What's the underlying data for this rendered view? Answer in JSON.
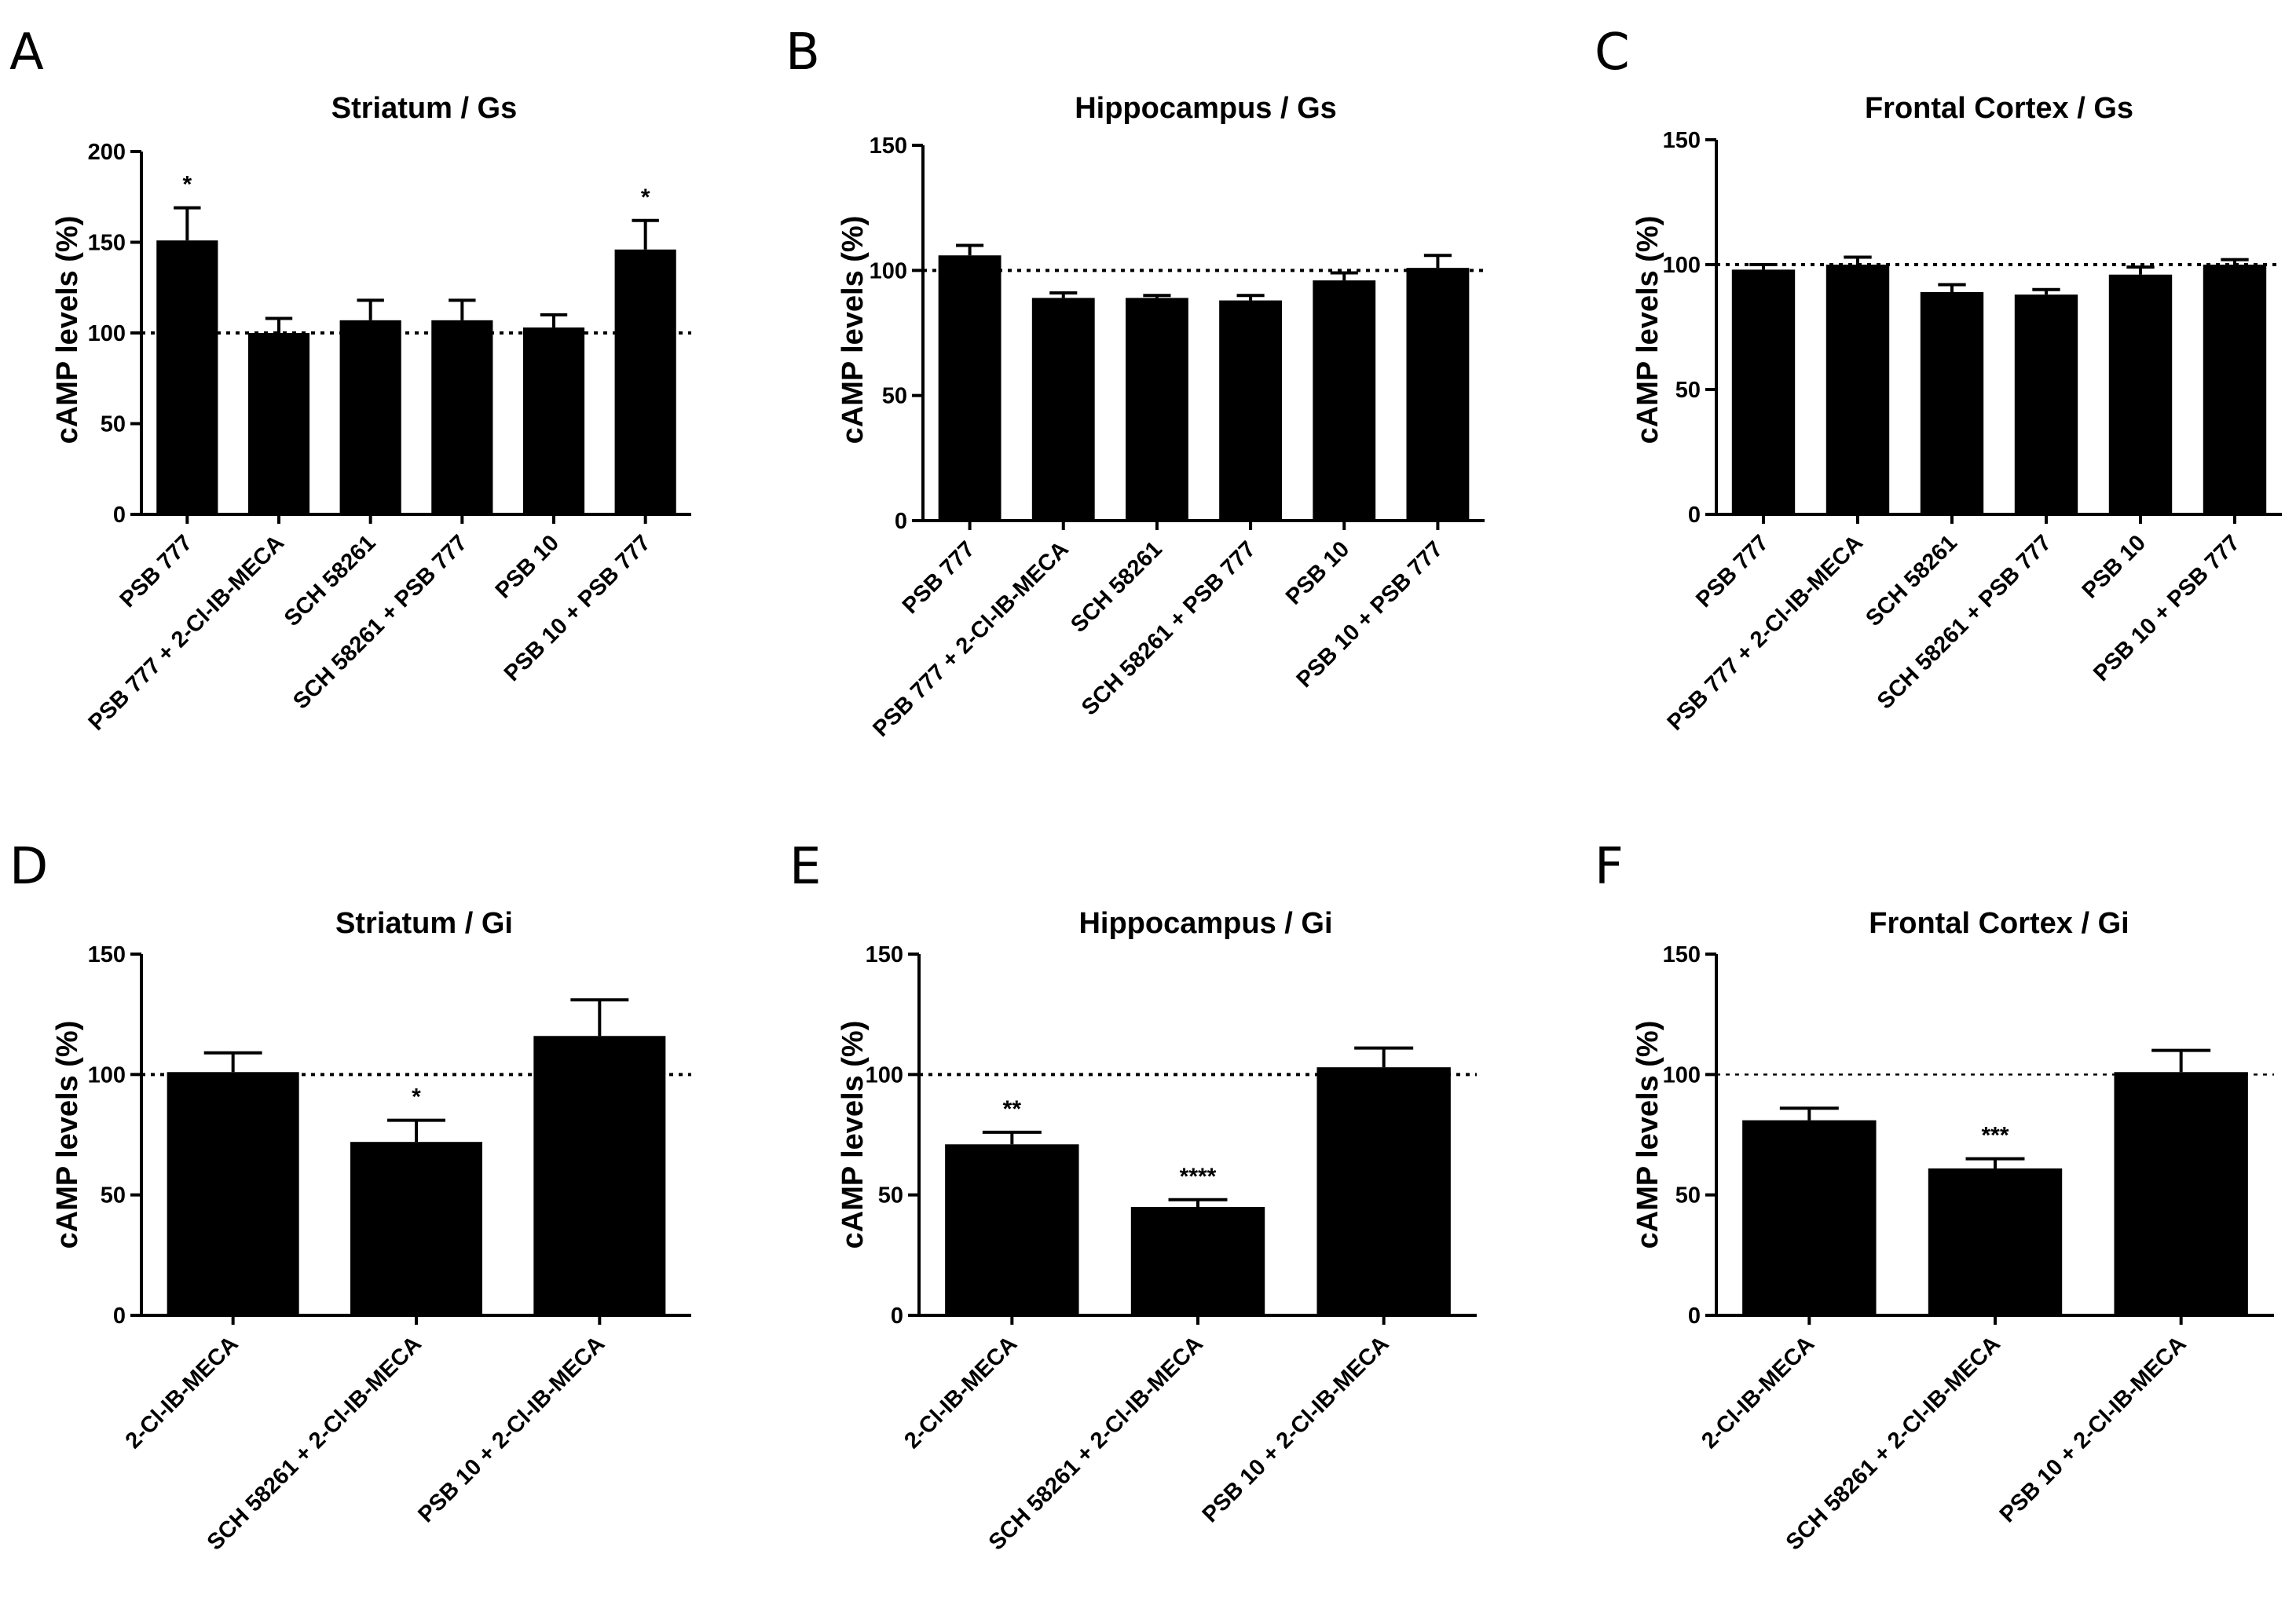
{
  "figure": {
    "accent_color": "#000000"
  },
  "chart_data": [
    {
      "panel": "A",
      "type": "bar",
      "title": "Striatum / Gs",
      "ylabel": "cAMP levels (%)",
      "xlabel": "",
      "ylim": [
        0,
        200
      ],
      "yticks": [
        0,
        50,
        100,
        150,
        200
      ],
      "reference_line": 100,
      "categories": [
        "PSB 777",
        "PSB 777 + 2-Cl-IB-MECA",
        "SCH 58261",
        "SCH 58261 + PSB 777",
        "PSB 10",
        "PSB 10 + PSB 777"
      ],
      "values": [
        151,
        100,
        107,
        107,
        103,
        146
      ],
      "errors": [
        18,
        8,
        11,
        11,
        7,
        16
      ],
      "significance": [
        "*",
        "",
        "",
        "",
        "",
        "*"
      ]
    },
    {
      "panel": "B",
      "type": "bar",
      "title": "Hippocampus / Gs",
      "ylabel": "cAMP levels (%)",
      "xlabel": "",
      "ylim": [
        0,
        150
      ],
      "yticks": [
        0,
        50,
        100,
        150
      ],
      "reference_line": 100,
      "categories": [
        "PSB 777",
        "PSB 777 + 2-Cl-IB-MECA",
        "SCH 58261",
        "SCH 58261 + PSB 777",
        "PSB 10",
        "PSB 10 + PSB 777"
      ],
      "values": [
        106,
        89,
        89,
        88,
        96,
        101
      ],
      "errors": [
        4,
        2,
        1,
        2,
        3,
        5
      ],
      "significance": [
        "",
        "",
        "",
        "",
        "",
        ""
      ]
    },
    {
      "panel": "C",
      "type": "bar",
      "title": "Frontal Cortex / Gs",
      "ylabel": "cAMP levels (%)",
      "xlabel": "",
      "ylim": [
        0,
        150
      ],
      "yticks": [
        0,
        50,
        100,
        150
      ],
      "reference_line": 100,
      "categories": [
        "PSB 777",
        "PSB 777 + 2-Cl-IB-MECA",
        "SCH 58261",
        "SCH 58261 + PSB 777",
        "PSB 10",
        "PSB 10 + PSB 777"
      ],
      "values": [
        98,
        100,
        89,
        88,
        96,
        100
      ],
      "errors": [
        2,
        3,
        3,
        2,
        3,
        2
      ],
      "significance": [
        "",
        "",
        "",
        "",
        "",
        ""
      ]
    },
    {
      "panel": "D",
      "type": "bar",
      "title": "Striatum / Gi",
      "ylabel": "cAMP levels (%)",
      "xlabel": "",
      "ylim": [
        0,
        150
      ],
      "yticks": [
        0,
        50,
        100,
        150
      ],
      "reference_line": 100,
      "categories": [
        "2-Cl-IB-MECA",
        "SCH 58261 + 2-Cl-IB-MECA",
        "PSB 10 + 2-Cl-IB-MECA"
      ],
      "values": [
        101,
        72,
        116
      ],
      "errors": [
        8,
        9,
        15
      ],
      "significance": [
        "",
        "*",
        ""
      ]
    },
    {
      "panel": "E",
      "type": "bar",
      "title": "Hippocampus / Gi",
      "ylabel": "cAMP levels (%)",
      "xlabel": "",
      "ylim": [
        0,
        150
      ],
      "yticks": [
        0,
        50,
        100,
        150
      ],
      "reference_line": 100,
      "categories": [
        "2-Cl-IB-MECA",
        "SCH 58261 + 2-Cl-IB-MECA",
        "PSB 10 + 2-Cl-IB-MECA"
      ],
      "values": [
        71,
        45,
        103
      ],
      "errors": [
        5,
        3,
        8
      ],
      "significance": [
        "**",
        "****",
        ""
      ]
    },
    {
      "panel": "F",
      "type": "bar",
      "title": "Frontal Cortex / Gi",
      "ylabel": "cAMP levels (%)",
      "xlabel": "",
      "ylim": [
        0,
        150
      ],
      "yticks": [
        0,
        50,
        100,
        150
      ],
      "reference_line": 100,
      "categories": [
        "2-Cl-IB-MECA",
        "SCH 58261 + 2-Cl-IB-MECA",
        "PSB 10 + 2-Cl-IB-MECA"
      ],
      "values": [
        81,
        61,
        101
      ],
      "errors": [
        5,
        4,
        9
      ],
      "significance": [
        "",
        "***",
        ""
      ]
    }
  ]
}
